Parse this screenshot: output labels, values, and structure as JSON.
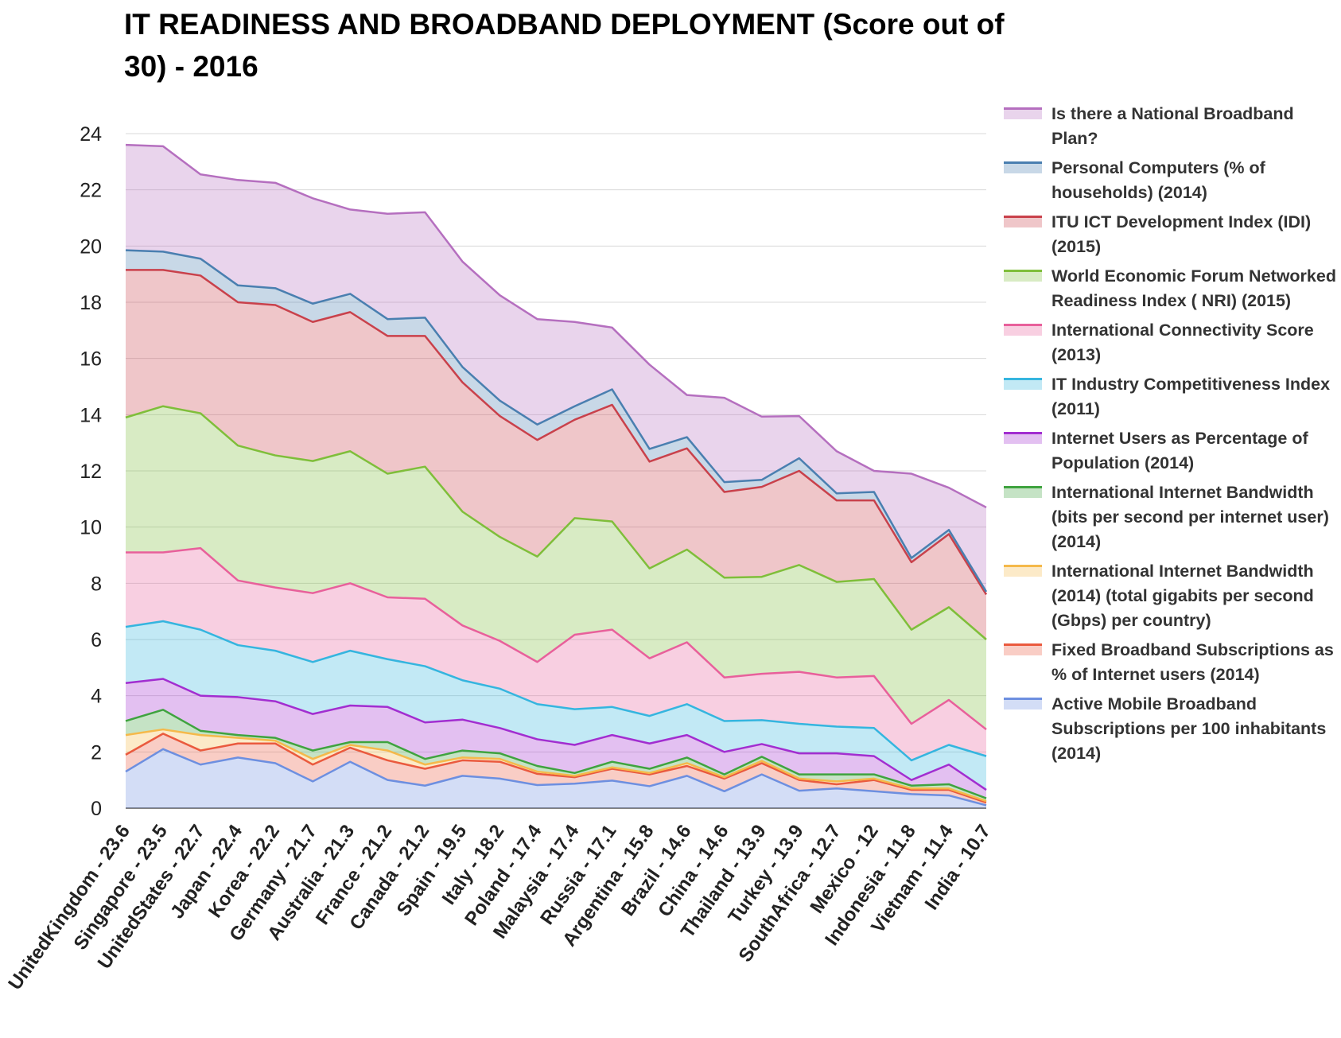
{
  "title": "IT READINESS AND BROADBAND DEPLOYMENT (Score out of 30) - 2016",
  "chart_data": {
    "type": "area",
    "stacked": true,
    "title": "IT READINESS AND BROADBAND DEPLOYMENT (Score out of 30) - 2016",
    "xlabel": "",
    "ylabel": "",
    "ylim": [
      0,
      24
    ],
    "yticks": [
      0,
      2,
      4,
      6,
      8,
      10,
      12,
      14,
      16,
      18,
      20,
      22,
      24
    ],
    "grid": true,
    "legend_position": "right",
    "categories": [
      "UnitedKingdom - 23.6",
      "Singapore - 23.5",
      "UnitedStates - 22.7",
      "Japan - 22.4",
      "Korea - 22.2",
      "Germany - 21.7",
      "Australia - 21.3",
      "France - 21.2",
      "Canada - 21.2",
      "Spain - 19.5",
      "Italy - 18.2",
      "Poland - 17.4",
      "Malaysia - 17.4",
      "Russia - 17.1",
      "Argentina - 15.8",
      "Brazil - 14.6",
      "China - 14.6",
      "Thailand - 13.9",
      "Turkey - 13.9",
      "SouthAfrica - 12.7",
      "Mexico - 12",
      "Indonesia - 11.8",
      "Vietnam - 11.4",
      "India - 10.7"
    ],
    "series": [
      {
        "name": "Active Mobile Broadband Subscriptions per 100 inhabitants (2014)",
        "color": "#6d8fe0",
        "values": [
          1.3,
          2.1,
          1.55,
          1.8,
          1.6,
          0.95,
          1.65,
          1.0,
          0.8,
          1.15,
          1.05,
          0.82,
          0.87,
          0.98,
          0.78,
          1.15,
          0.6,
          1.2,
          0.62,
          0.7,
          0.6,
          0.5,
          0.45,
          0.1
        ]
      },
      {
        "name": "Fixed Broadband Subscriptions as % of Internet users (2014)",
        "color": "#ea5a3e",
        "values": [
          0.6,
          0.55,
          0.5,
          0.5,
          0.7,
          0.6,
          0.5,
          0.7,
          0.6,
          0.55,
          0.6,
          0.4,
          0.23,
          0.42,
          0.42,
          0.35,
          0.45,
          0.4,
          0.38,
          0.15,
          0.4,
          0.15,
          0.2,
          0.1
        ]
      },
      {
        "name": "International Internet Bandwidth (2014) (total gigabits per second (Gbps) per country)",
        "color": "#f5b94a",
        "values": [
          0.7,
          0.15,
          0.55,
          0.2,
          0.1,
          0.2,
          0.1,
          0.35,
          0.15,
          0.1,
          0.1,
          0.08,
          0.05,
          0.05,
          0.05,
          0.1,
          0.05,
          0.08,
          0.05,
          0.1,
          0.05,
          0.05,
          0.05,
          0.05
        ]
      },
      {
        "name": "International Internet Bandwidth (bits per second per internet user) (2014)",
        "color": "#3fa33f",
        "values": [
          0.5,
          0.7,
          0.15,
          0.1,
          0.1,
          0.3,
          0.1,
          0.3,
          0.2,
          0.25,
          0.2,
          0.2,
          0.1,
          0.2,
          0.15,
          0.2,
          0.1,
          0.15,
          0.15,
          0.25,
          0.15,
          0.1,
          0.15,
          0.1
        ]
      },
      {
        "name": "Internet Users as Percentage of Population (2014)",
        "color": "#a22ed0",
        "values": [
          1.35,
          1.1,
          1.25,
          1.35,
          1.3,
          1.3,
          1.3,
          1.25,
          1.3,
          1.1,
          0.9,
          0.95,
          1.0,
          0.95,
          0.9,
          0.8,
          0.8,
          0.45,
          0.75,
          0.75,
          0.65,
          0.2,
          0.7,
          0.3
        ]
      },
      {
        "name": "IT Industry Competitiveness Index (2011)",
        "color": "#35b5df",
        "values": [
          2.0,
          2.05,
          2.35,
          1.85,
          1.8,
          1.85,
          1.95,
          1.7,
          2.0,
          1.4,
          1.4,
          1.25,
          1.27,
          1.0,
          0.98,
          1.1,
          1.1,
          0.85,
          1.05,
          0.95,
          1.0,
          0.7,
          0.7,
          1.2
        ]
      },
      {
        "name": "International Connectivity Score (2013)",
        "color": "#e8609b",
        "values": [
          2.65,
          2.45,
          2.9,
          2.3,
          2.25,
          2.45,
          2.4,
          2.2,
          2.4,
          1.95,
          1.7,
          1.5,
          2.65,
          2.75,
          2.05,
          2.2,
          1.55,
          1.65,
          1.85,
          1.75,
          1.85,
          1.3,
          1.6,
          0.95
        ]
      },
      {
        "name": "World Economic Forum Networked Readiness Index ( NRI) (2015)",
        "color": "#7fbe3a",
        "values": [
          4.8,
          5.2,
          4.8,
          4.8,
          4.7,
          4.7,
          4.7,
          4.4,
          4.7,
          4.05,
          3.7,
          3.75,
          4.15,
          3.85,
          3.2,
          3.3,
          3.55,
          3.45,
          3.8,
          3.4,
          3.45,
          3.35,
          3.3,
          3.2
        ]
      },
      {
        "name": "ITU ICT Development Index (IDI) (2015)",
        "color": "#c9414b",
        "values": [
          5.25,
          4.85,
          4.9,
          5.1,
          5.35,
          4.95,
          4.95,
          4.9,
          4.65,
          4.6,
          4.3,
          4.15,
          3.5,
          4.15,
          3.8,
          3.6,
          3.05,
          3.2,
          3.35,
          2.9,
          2.8,
          2.4,
          2.6,
          1.6
        ]
      },
      {
        "name": "Personal Computers (% of households) (2014)",
        "color": "#4a7fb0",
        "values": [
          0.7,
          0.65,
          0.6,
          0.6,
          0.6,
          0.65,
          0.65,
          0.6,
          0.65,
          0.55,
          0.55,
          0.55,
          0.48,
          0.55,
          0.45,
          0.4,
          0.35,
          0.25,
          0.45,
          0.25,
          0.3,
          0.15,
          0.15,
          0.1
        ]
      },
      {
        "name": "Is there a National Broadband Plan?",
        "color": "#b56fbf",
        "values": [
          3.75,
          3.75,
          3.0,
          3.75,
          3.75,
          3.75,
          3.0,
          3.75,
          3.75,
          3.75,
          3.75,
          3.75,
          3.0,
          2.2,
          3.0,
          1.5,
          3.0,
          2.25,
          1.5,
          1.5,
          0.75,
          3.0,
          1.5,
          3.0
        ]
      }
    ]
  }
}
